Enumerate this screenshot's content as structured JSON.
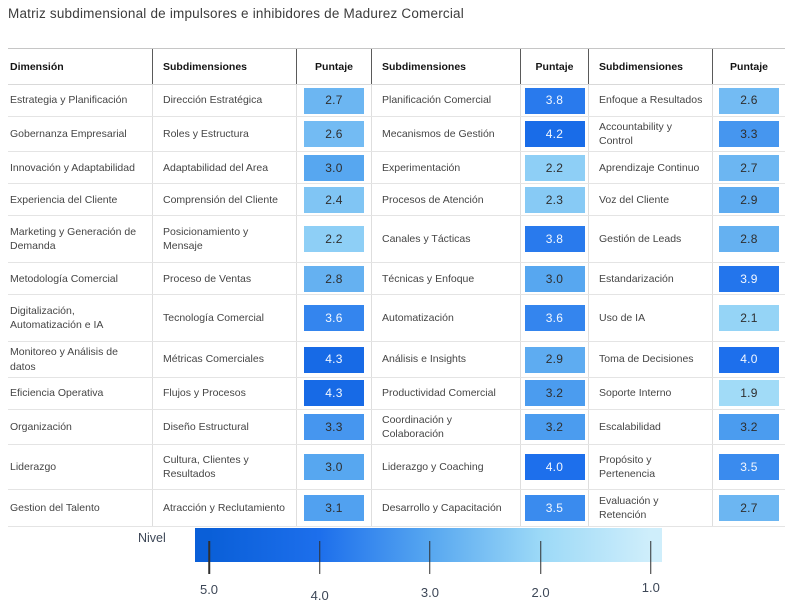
{
  "title": "Matriz subdimensional de impulsores e inhibidores de Madurez Comercial",
  "table": {
    "headers": [
      "Dimensión",
      "Subdimensiones",
      "Puntaje",
      "Subdimensiones",
      "Puntaje",
      "Subdimensiones",
      "Puntaje"
    ],
    "rows": [
      {
        "dimension": "Estrategia y Planificación",
        "entries": [
          {
            "sub": "Dirección Estratégica",
            "score": "2.7"
          },
          {
            "sub": "Planificación Comercial",
            "score": "3.8"
          },
          {
            "sub": "Enfoque a Resultados",
            "score": "2.6"
          }
        ]
      },
      {
        "dimension": "Gobernanza Empresarial",
        "entries": [
          {
            "sub": "Roles y Estructura",
            "score": "2.6"
          },
          {
            "sub": "Mecanismos de Gestión",
            "score": "4.2"
          },
          {
            "sub": "Accountability y Control",
            "score": "3.3"
          }
        ]
      },
      {
        "dimension": "Innovación y Adaptabilidad",
        "entries": [
          {
            "sub": "Adaptabilidad del Area",
            "score": "3.0"
          },
          {
            "sub": "Experimentación",
            "score": "2.2"
          },
          {
            "sub": "Aprendizaje Continuo",
            "score": "2.7"
          }
        ]
      },
      {
        "dimension": "Experiencia del Cliente",
        "entries": [
          {
            "sub": "Comprensión del Cliente",
            "score": "2.4"
          },
          {
            "sub": "Procesos de Atención",
            "score": "2.3"
          },
          {
            "sub": "Voz del Cliente",
            "score": "2.9"
          }
        ]
      },
      {
        "dimension": "Marketing y Generación de Demanda",
        "entries": [
          {
            "sub": "Posicionamiento y Mensaje",
            "score": "2.2"
          },
          {
            "sub": "Canales y Tácticas",
            "score": "3.8"
          },
          {
            "sub": "Gestión de Leads",
            "score": "2.8"
          }
        ]
      },
      {
        "dimension": "Metodología Comercial",
        "entries": [
          {
            "sub": "Proceso de Ventas",
            "score": "2.8"
          },
          {
            "sub": "Técnicas y Enfoque",
            "score": "3.0"
          },
          {
            "sub": "Estandarización",
            "score": "3.9"
          }
        ]
      },
      {
        "dimension": "Digitalización, Automatización e IA",
        "entries": [
          {
            "sub": "Tecnología Comercial",
            "score": "3.6"
          },
          {
            "sub": "Automatización",
            "score": "3.6"
          },
          {
            "sub": "Uso de IA",
            "score": "2.1"
          }
        ]
      },
      {
        "dimension": "Monitoreo y Análisis de datos",
        "entries": [
          {
            "sub": "Métricas Comerciales",
            "score": "4.3"
          },
          {
            "sub": "Análisis e Insights",
            "score": "2.9"
          },
          {
            "sub": "Toma de Decisiones",
            "score": "4.0"
          }
        ]
      },
      {
        "dimension": "Eficiencia Operativa",
        "entries": [
          {
            "sub": "Flujos y Procesos",
            "score": "4.3"
          },
          {
            "sub": "Productividad Comercial",
            "score": "3.2"
          },
          {
            "sub": "Soporte Interno",
            "score": "1.9"
          }
        ]
      },
      {
        "dimension": "Organización",
        "entries": [
          {
            "sub": "Diseño Estructural",
            "score": "3.3"
          },
          {
            "sub": "Coordinación y Colaboración",
            "score": "3.2"
          },
          {
            "sub": "Escalabilidad",
            "score": "3.2"
          }
        ]
      },
      {
        "dimension": "Liderazgo",
        "entries": [
          {
            "sub": "Cultura, Clientes y Resultados",
            "score": "3.0"
          },
          {
            "sub": "Liderazgo y Coaching",
            "score": "4.0"
          },
          {
            "sub": "Propósito y Pertenencia",
            "score": "3.5"
          }
        ]
      },
      {
        "dimension": "Gestion del Talento",
        "entries": [
          {
            "sub": "Atracción y Reclutamiento",
            "score": "3.1"
          },
          {
            "sub": "Desarrollo y Capacitación",
            "score": "3.5"
          },
          {
            "sub": "Evaluación y Retención",
            "score": "2.7"
          }
        ]
      }
    ]
  },
  "legend": {
    "label": "Nivel",
    "ticks": [
      "5.0",
      "4.0",
      "3.0",
      "2.0",
      "1.0"
    ],
    "gradient_stops": [
      {
        "value": 5.0,
        "color": "#0a5fd8"
      },
      {
        "value": 4.0,
        "color": "#1d6fec"
      },
      {
        "value": 3.0,
        "color": "#57a7f0"
      },
      {
        "value": 2.0,
        "color": "#9cd9f7"
      },
      {
        "value": 1.0,
        "color": "#cfeefb"
      }
    ]
  },
  "colors": {
    "chip_text_dark": "#2e2e2e",
    "chip_text_light": "#f2f7ff",
    "white_text_threshold": 3.5
  },
  "chart_data": {
    "type": "heatmap",
    "title": "Matriz subdimensional de impulsores e inhibidores de Madurez Comercial",
    "colorbar_label": "Nivel",
    "colorbar_range": [
      5.0,
      1.0
    ]
  }
}
